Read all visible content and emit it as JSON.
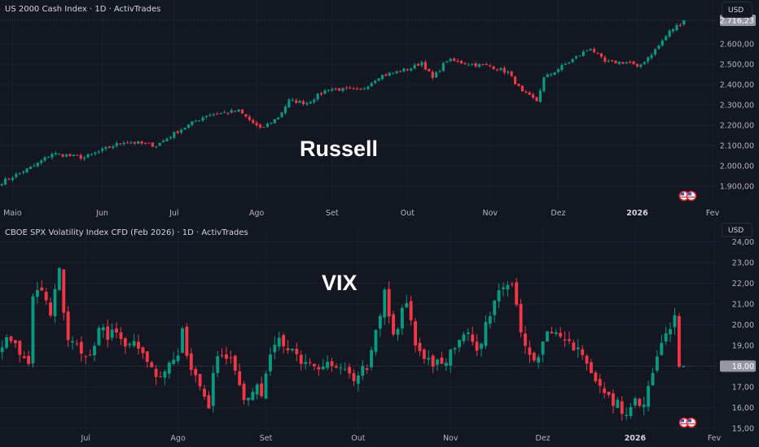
{
  "colors": {
    "up": "#089981",
    "down": "#f23645",
    "background": "#131722",
    "grid": "#1c2030",
    "axis_text": "#b2b5be"
  },
  "chart_data": [
    {
      "type": "candlestick",
      "title": "US 2000 Cash Index · 1D · ActivTrades",
      "watermark": "Russell",
      "currency": "USD",
      "last_price_label": "2.716,23",
      "last_price": 2716.23,
      "ylim": [
        1860,
        2770
      ],
      "y_ticks": [
        1900,
        2000,
        2100,
        2200,
        2300,
        2400,
        2500,
        2600
      ],
      "y_tick_labels": [
        "1.900,00",
        "2.000,00",
        "2.100,00",
        "2.200,00",
        "2.300,00",
        "2.400,00",
        "2.500,00",
        "2.600,00"
      ],
      "x_count": 191,
      "x_ticks": [
        {
          "label": "Maio",
          "i": 3
        },
        {
          "label": "Jun",
          "i": 28
        },
        {
          "label": "Jul",
          "i": 48
        },
        {
          "label": "Ago",
          "i": 71
        },
        {
          "label": "Set",
          "i": 92
        },
        {
          "label": "Out",
          "i": 113
        },
        {
          "label": "Nov",
          "i": 136
        },
        {
          "label": "Dez",
          "i": 155
        },
        {
          "label": "2026",
          "i": 177
        },
        {
          "label": "Fev",
          "i": 198
        }
      ],
      "close_keypoints": [
        [
          0,
          1920
        ],
        [
          9,
          2000
        ],
        [
          14,
          2060
        ],
        [
          23,
          2040
        ],
        [
          34,
          2120
        ],
        [
          43,
          2100
        ],
        [
          49,
          2170
        ],
        [
          57,
          2250
        ],
        [
          66,
          2270
        ],
        [
          72,
          2180
        ],
        [
          77,
          2240
        ],
        [
          80,
          2320
        ],
        [
          85,
          2310
        ],
        [
          91,
          2380
        ],
        [
          100,
          2370
        ],
        [
          105,
          2440
        ],
        [
          114,
          2480
        ],
        [
          117,
          2510
        ],
        [
          120,
          2430
        ],
        [
          124,
          2520
        ],
        [
          131,
          2500
        ],
        [
          136,
          2490
        ],
        [
          141,
          2460
        ],
        [
          145,
          2360
        ],
        [
          149,
          2320
        ],
        [
          151,
          2430
        ],
        [
          157,
          2500
        ],
        [
          164,
          2580
        ],
        [
          168,
          2510
        ],
        [
          175,
          2510
        ],
        [
          177,
          2480
        ],
        [
          182,
          2570
        ],
        [
          186,
          2660
        ],
        [
          190,
          2716
        ]
      ],
      "volatility": 12
    },
    {
      "type": "candlestick",
      "title": "CBOE SPX Volatility Index CFD (Feb 2026) · 1D · ActivTrades",
      "watermark": "VIX",
      "currency": "USD",
      "last_price_label": "18,00",
      "last_price": 18.0,
      "ylim": [
        14.9,
        24.3
      ],
      "y_ticks": [
        15,
        16,
        17,
        18,
        19,
        20,
        21,
        22,
        23,
        24
      ],
      "y_tick_labels": [
        "15,00",
        "16,00",
        "17,00",
        "18,00",
        "19,00",
        "20,00",
        "21,00",
        "22,00",
        "23,00",
        "24,00"
      ],
      "x_count": 156,
      "x_ticks": [
        {
          "label": "Jul",
          "i": 19
        },
        {
          "label": "Ago",
          "i": 40
        },
        {
          "label": "Set",
          "i": 60
        },
        {
          "label": "Out",
          "i": 81
        },
        {
          "label": "Nov",
          "i": 102
        },
        {
          "label": "Dez",
          "i": 123
        },
        {
          "label": "2026",
          "i": 144
        },
        {
          "label": "Fev",
          "i": 162
        }
      ],
      "close_keypoints": [
        [
          0,
          19.0
        ],
        [
          2,
          19.5
        ],
        [
          6,
          18.2
        ],
        [
          7,
          21.5
        ],
        [
          9,
          22
        ],
        [
          11,
          20.5
        ],
        [
          13,
          22.5
        ],
        [
          15,
          19.3
        ],
        [
          17,
          19
        ],
        [
          20,
          18.6
        ],
        [
          22,
          20
        ],
        [
          24,
          19.5
        ],
        [
          28,
          19.2
        ],
        [
          31,
          19
        ],
        [
          35,
          17.7
        ],
        [
          39,
          18.2
        ],
        [
          41,
          19.5
        ],
        [
          44,
          17.4
        ],
        [
          47,
          15.9
        ],
        [
          49,
          18.8
        ],
        [
          52,
          18.5
        ],
        [
          55,
          16.7
        ],
        [
          59,
          16.8
        ],
        [
          62,
          19.3
        ],
        [
          65,
          18.6
        ],
        [
          70,
          18.2
        ],
        [
          74,
          18.0
        ],
        [
          78,
          17.6
        ],
        [
          83,
          17.7
        ],
        [
          85,
          19.5
        ],
        [
          87,
          21.5
        ],
        [
          89,
          19.5
        ],
        [
          92,
          21.4
        ],
        [
          94,
          19.0
        ],
        [
          98,
          18.2
        ],
        [
          102,
          18.6
        ],
        [
          106,
          19.5
        ],
        [
          108,
          18.5
        ],
        [
          111,
          20.5
        ],
        [
          113,
          22
        ],
        [
          116,
          22.3
        ],
        [
          118,
          19.5
        ],
        [
          122,
          18.3
        ],
        [
          124,
          19.4
        ],
        [
          128,
          19.2
        ],
        [
          131,
          19.0
        ],
        [
          135,
          17.2
        ],
        [
          139,
          16.2
        ],
        [
          143,
          15.9
        ],
        [
          146,
          16.5
        ],
        [
          148,
          18.0
        ],
        [
          151,
          19.5
        ],
        [
          153,
          20.2
        ],
        [
          154,
          18.3
        ],
        [
          155,
          18.0
        ]
      ],
      "volatility": 0.45
    }
  ]
}
